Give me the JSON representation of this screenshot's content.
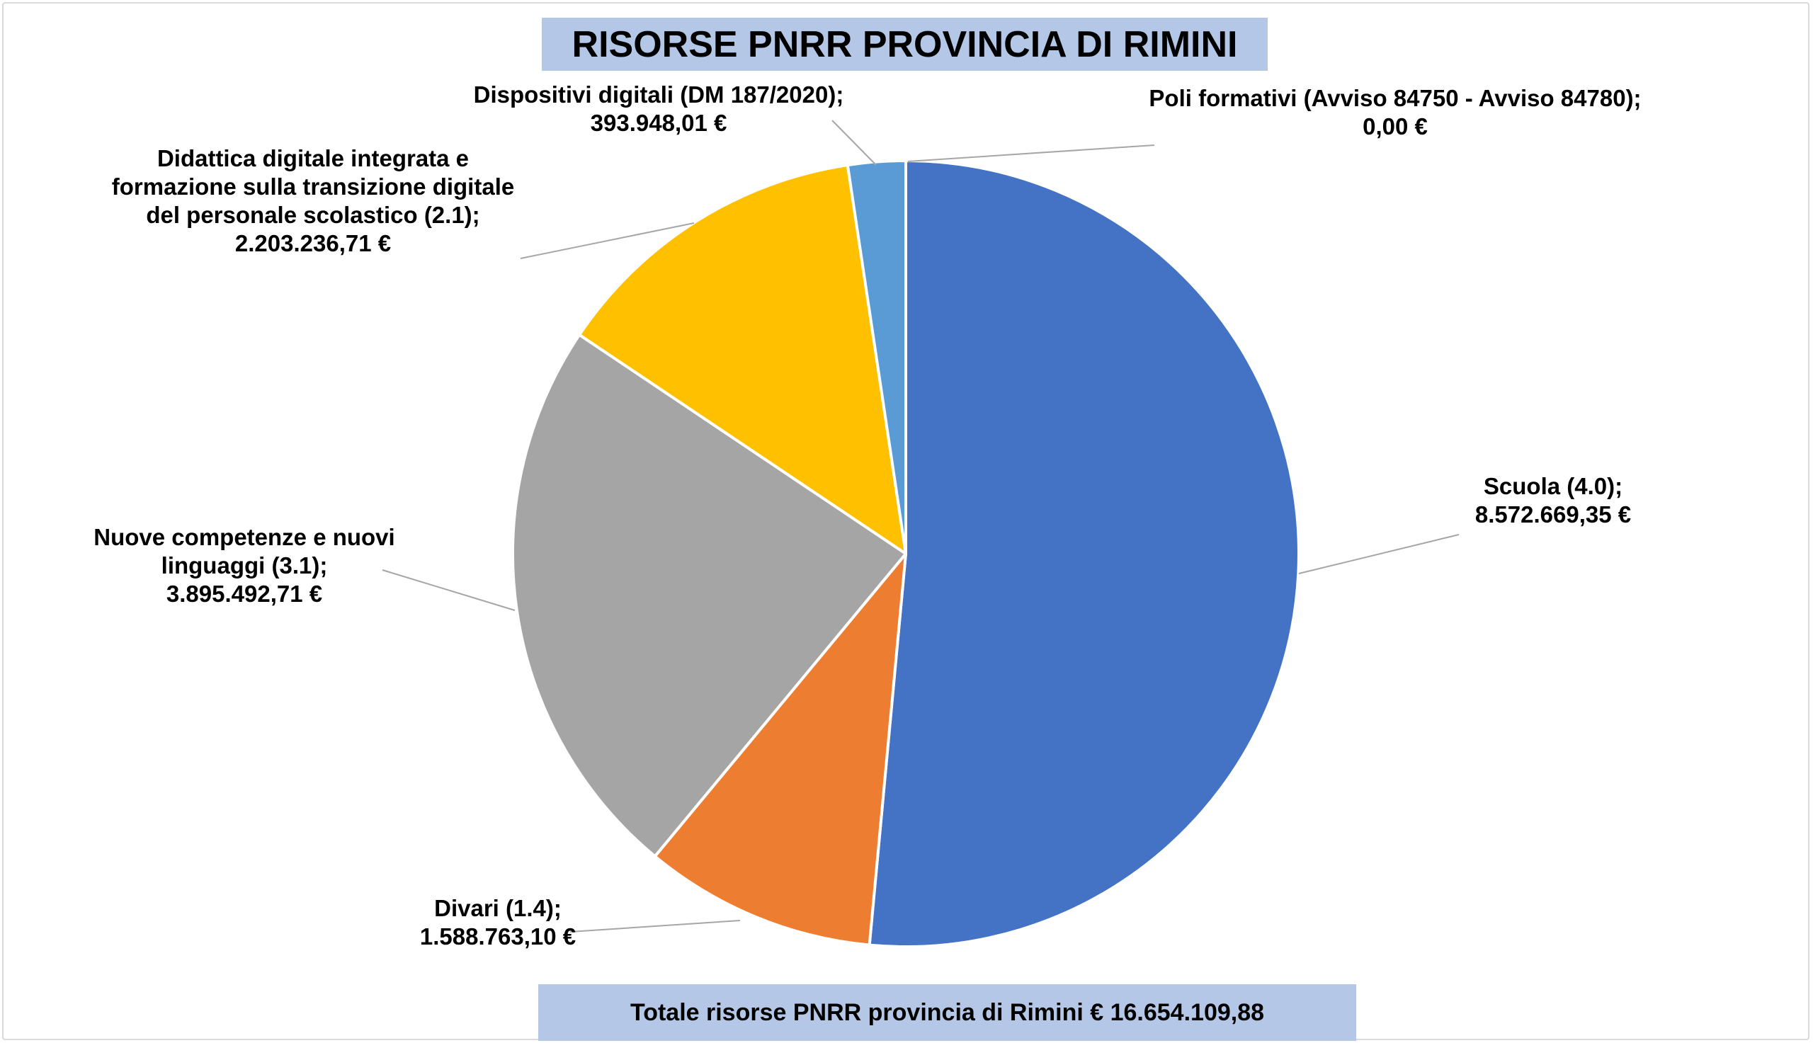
{
  "title": "RISORSE PNRR PROVINCIA DI RIMINI",
  "footer": "Totale risorse PNRR provincia di Rimini € 16.654.109,88",
  "chart_data": {
    "type": "pie",
    "title": "RISORSE PNRR PROVINCIA DI RIMINI",
    "start_angle_deg": 0,
    "direction": "clockwise",
    "slices": [
      {
        "label_lines": [
          "Scuola (4.0);",
          "8.572.669,35 €"
        ],
        "value": 8572669.35,
        "color": "#4472c4"
      },
      {
        "label_lines": [
          "Divari (1.4);",
          "1.588.763,10 €"
        ],
        "value": 1588763.1,
        "color": "#ed7d31"
      },
      {
        "label_lines": [
          "Nuove competenze e nuovi",
          "linguaggi (3.1);",
          "3.895.492,71 €"
        ],
        "value": 3895492.71,
        "color": "#a5a5a5"
      },
      {
        "label_lines": [
          "Didattica digitale integrata e",
          "formazione sulla transizione digitale",
          "del personale scolastico (2.1);",
          "2.203.236,71 €"
        ],
        "value": 2203236.71,
        "color": "#ffc000"
      },
      {
        "label_lines": [
          "Dispositivi digitali (DM 187/2020);",
          "393.948,01 €"
        ],
        "value": 393948.01,
        "color": "#5b9bd5"
      },
      {
        "label_lines": [
          "Poli formativi (Avviso 84750 - Avviso 84780);",
          "0,00 €"
        ],
        "value": 0.0,
        "color": "#70ad47"
      }
    ],
    "total_label": "Totale risorse PNRR provincia di Rimini € 16.654.109,88",
    "leader_line_color": "#a6a6a6",
    "slice_border_color": "#ffffff"
  }
}
